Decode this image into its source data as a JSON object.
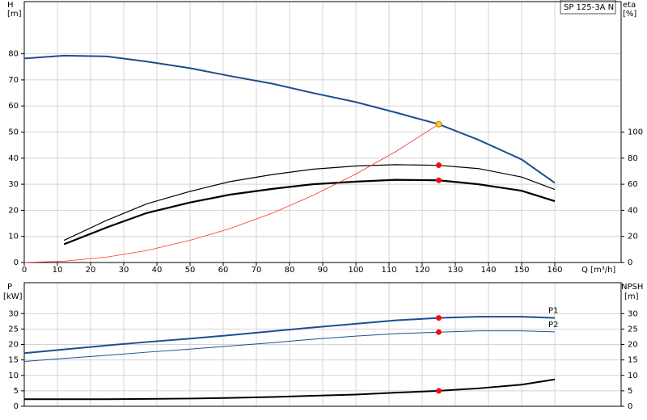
{
  "chart_data": [
    {
      "type": "line",
      "y_label": "H",
      "y_unit": "[m]",
      "y2_label": "eta",
      "y2_unit": "[%]",
      "x_label": "Q [m³/h]",
      "box_label": "SP 125-3A N",
      "x": [
        0,
        12,
        25,
        37,
        50,
        62,
        75,
        87,
        100,
        112,
        125,
        137,
        150,
        160
      ],
      "xlim": [
        0,
        180
      ],
      "xticks": [
        0,
        10,
        20,
        30,
        40,
        50,
        60,
        70,
        80,
        90,
        100,
        110,
        120,
        130,
        140,
        150,
        160
      ],
      "ylim": [
        0,
        100
      ],
      "yticks": [
        0,
        10,
        20,
        30,
        40,
        50,
        60,
        70,
        80
      ],
      "y2lim": [
        0,
        200
      ],
      "y2ticks": [
        0,
        20,
        40,
        60,
        80,
        100
      ],
      "grid": true,
      "series": [
        {
          "color": "#1c4f8f",
          "width": 2,
          "values": [
            78.2,
            79.3,
            79,
            77,
            74.5,
            71.5,
            68.5,
            65,
            61.5,
            57.5,
            53,
            47,
            39.5,
            30.5
          ]
        },
        {
          "color": "#000000",
          "width": 1.2,
          "axis": "y2",
          "values": [
            null,
            17,
            32.5,
            45,
            54.5,
            62,
            67.5,
            71.5,
            74,
            75,
            74.5,
            72,
            65.5,
            56
          ]
        },
        {
          "color": "#000000",
          "width": 2.2,
          "axis": "y2",
          "values": [
            null,
            14,
            27,
            38,
            46,
            52,
            56.5,
            60,
            62,
            63.4,
            63,
            60,
            55,
            47
          ]
        },
        {
          "color": "#ff3030",
          "width": 0.8,
          "values": [
            0,
            0.5,
            2.1,
            4.6,
            8.5,
            13,
            19,
            25.7,
            33.9,
            42.5,
            53,
            null,
            null,
            null
          ]
        }
      ],
      "markers": [
        {
          "x": 125,
          "y": 53,
          "color": "#ffd21a"
        },
        {
          "x": 125,
          "y": 74.6,
          "axis": "y2",
          "color": "#ee1111"
        },
        {
          "x": 125,
          "y": 63,
          "axis": "y2",
          "color": "#ee1111"
        }
      ]
    },
    {
      "type": "line",
      "y_label": "P",
      "y_unit": "[kW]",
      "y2_label": "NPSH",
      "y2_unit": "[m]",
      "x": [
        0,
        12,
        25,
        37,
        50,
        62,
        75,
        87,
        100,
        112,
        125,
        137,
        150,
        160
      ],
      "xlim": [
        0,
        180
      ],
      "ylim": [
        0,
        40
      ],
      "yticks": [
        0,
        5,
        10,
        15,
        20,
        25,
        30
      ],
      "y2lim": [
        0,
        40
      ],
      "y2ticks": [
        0,
        5,
        10,
        15,
        20,
        25,
        30
      ],
      "grid": true,
      "series": [
        {
          "name": "P1",
          "color": "#1c4f8f",
          "width": 2,
          "values": [
            17.2,
            18.4,
            19.7,
            20.8,
            21.9,
            23,
            24.3,
            25.5,
            26.7,
            27.8,
            28.6,
            29,
            29,
            28.6
          ]
        },
        {
          "name": "P2",
          "color": "#1c4f8f",
          "width": 1,
          "values": [
            14.5,
            15.5,
            16.5,
            17.5,
            18.5,
            19.5,
            20.6,
            21.7,
            22.7,
            23.5,
            24,
            24.4,
            24.4,
            24.1
          ]
        },
        {
          "color": "#000000",
          "width": 2,
          "axis": "y2",
          "values": [
            2.3,
            2.3,
            2.3,
            2.4,
            2.5,
            2.7,
            3,
            3.4,
            3.8,
            4.4,
            5,
            5.8,
            7,
            8.7
          ]
        }
      ],
      "markers": [
        {
          "x": 125,
          "y": 28.6,
          "color": "#ee1111"
        },
        {
          "x": 125,
          "y": 24,
          "color": "#ee1111"
        },
        {
          "x": 125,
          "y": 5,
          "axis": "y2",
          "color": "#ee1111"
        }
      ]
    }
  ]
}
